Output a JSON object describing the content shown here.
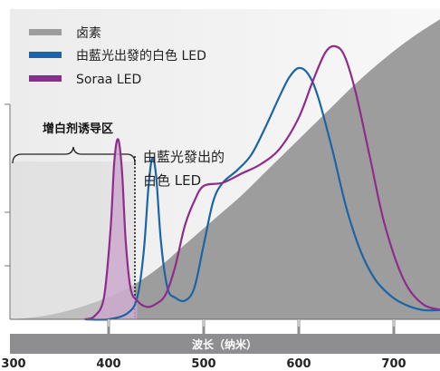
{
  "chart_data": {
    "type": "line",
    "title": "",
    "xlabel": "波长（纳米）",
    "ylabel": "",
    "xlim": [
      300,
      750
    ],
    "ylim": [
      0,
      1.0
    ],
    "x_ticks": [
      300,
      400,
      500,
      600,
      700
    ],
    "grid": false,
    "legend_position": "top-left",
    "series": [
      {
        "name": "卤素",
        "kind": "area",
        "color": "#9d9d9e",
        "x": [
          300,
          330,
          360,
          390,
          420,
          450,
          480,
          510,
          540,
          570,
          600,
          630,
          660,
          690,
          720,
          750
        ],
        "y": [
          0.0,
          0.01,
          0.03,
          0.06,
          0.1,
          0.16,
          0.24,
          0.32,
          0.4,
          0.49,
          0.58,
          0.67,
          0.76,
          0.84,
          0.91,
          0.97
        ]
      },
      {
        "name": "由藍光出發的白色 LED",
        "kind": "line",
        "color": "#1b65a6",
        "x": [
          375,
          400,
          420,
          430,
          437,
          442,
          446,
          450,
          455,
          462,
          470,
          480,
          490,
          500,
          510,
          520,
          535,
          550,
          565,
          580,
          590,
          600,
          610,
          620,
          635,
          650,
          665,
          680,
          695,
          710,
          730,
          750
        ],
        "y": [
          0.0,
          0.0,
          0.02,
          0.07,
          0.22,
          0.43,
          0.52,
          0.46,
          0.25,
          0.1,
          0.07,
          0.06,
          0.1,
          0.24,
          0.38,
          0.44,
          0.48,
          0.53,
          0.62,
          0.72,
          0.78,
          0.81,
          0.79,
          0.72,
          0.55,
          0.36,
          0.22,
          0.13,
          0.08,
          0.05,
          0.03,
          0.03
        ]
      },
      {
        "name": "Soraa LED",
        "kind": "line",
        "color": "#8e2c8b",
        "x": [
          375,
          385,
          395,
          402,
          406,
          410,
          414,
          418,
          423,
          430,
          440,
          450,
          460,
          470,
          480,
          490,
          500,
          520,
          540,
          560,
          580,
          600,
          615,
          628,
          638,
          648,
          660,
          675,
          690,
          710,
          730,
          750
        ],
        "y": [
          0.0,
          0.01,
          0.07,
          0.29,
          0.51,
          0.58,
          0.48,
          0.25,
          0.1,
          0.06,
          0.04,
          0.05,
          0.08,
          0.17,
          0.3,
          0.38,
          0.43,
          0.44,
          0.47,
          0.5,
          0.55,
          0.65,
          0.77,
          0.86,
          0.88,
          0.85,
          0.73,
          0.52,
          0.31,
          0.13,
          0.05,
          0.03
        ]
      }
    ],
    "annotations": [
      {
        "text": "增白剂诱导区"
      },
      {
        "text": "由藍光發出的"
      },
      {
        "text": "白色 LED"
      }
    ]
  }
}
